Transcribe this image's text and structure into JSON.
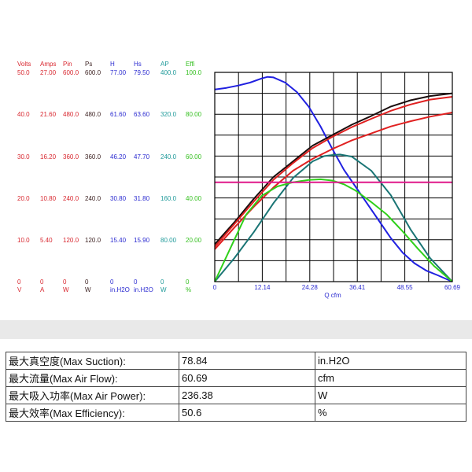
{
  "chart_data": {
    "type": "line",
    "x_axis": {
      "label": "Q  cfm",
      "ticks": [
        "0",
        "12.14",
        "24.28",
        "36.41",
        "48.55",
        "60.69"
      ],
      "range": [
        0,
        60.69
      ]
    },
    "y_axis_columns": [
      {
        "name": "Volts",
        "color": "#d8262e",
        "ticks": [
          "50.0",
          "40.0",
          "30.0",
          "20.0",
          "10.0",
          "0"
        ],
        "unit": "V"
      },
      {
        "name": "Amps",
        "color": "#d8262e",
        "ticks": [
          "27.00",
          "21.60",
          "16.20",
          "10.80",
          "5.40",
          "0"
        ],
        "unit": "A"
      },
      {
        "name": "Pin",
        "color": "#d8262e",
        "ticks": [
          "600.0",
          "480.0",
          "360.0",
          "240.0",
          "120.0",
          "0"
        ],
        "unit": "W"
      },
      {
        "name": "Ps",
        "color": "#3a1f1f",
        "ticks": [
          "600.0",
          "480.0",
          "360.0",
          "240.0",
          "120.0",
          "0"
        ],
        "unit": "W"
      },
      {
        "name": "H",
        "color": "#2a2ad0",
        "ticks": [
          "77.00",
          "61.60",
          "46.20",
          "30.80",
          "15.40",
          "0"
        ],
        "unit": "in.H2O"
      },
      {
        "name": "Hs",
        "color": "#2a2ad0",
        "ticks": [
          "79.50",
          "63.60",
          "47.70",
          "31.80",
          "15.90",
          "0"
        ],
        "unit": "in.H2O"
      },
      {
        "name": "AP",
        "color": "#1f9a9a",
        "ticks": [
          "400.0",
          "320.0",
          "240.0",
          "160.0",
          "80.00",
          "0"
        ],
        "unit": "W"
      },
      {
        "name": "Effi",
        "color": "#35c020",
        "ticks": [
          "100.0",
          "80.00",
          "60.00",
          "40.00",
          "20.00",
          "0"
        ],
        "unit": "%"
      }
    ],
    "grid": true,
    "series": [
      {
        "axis": "Hs",
        "color": "#2020e0",
        "points": [
          [
            0,
            73.0
          ],
          [
            3,
            73.6
          ],
          [
            6,
            74.5
          ],
          [
            9,
            75.6
          ],
          [
            12,
            77.2
          ],
          [
            13.5,
            77.8
          ],
          [
            15,
            77.6
          ],
          [
            18,
            75.6
          ],
          [
            21,
            72.0
          ],
          [
            24,
            66.5
          ],
          [
            27,
            59.0
          ],
          [
            30,
            50.5
          ],
          [
            33,
            42.5
          ],
          [
            36,
            36.0
          ],
          [
            39,
            29.5
          ],
          [
            42,
            23.0
          ],
          [
            45,
            16.5
          ],
          [
            48,
            11.0
          ],
          [
            51,
            7.0
          ],
          [
            54,
            4.2
          ],
          [
            57,
            2.4
          ],
          [
            60.69,
            0
          ]
        ]
      },
      {
        "axis": "Pin",
        "color": "#1a0d0d",
        "points": [
          [
            0,
            107
          ],
          [
            5,
            170
          ],
          [
            10,
            238
          ],
          [
            15,
            300
          ],
          [
            20,
            345
          ],
          [
            25,
            390
          ],
          [
            30,
            420
          ],
          [
            35,
            450
          ],
          [
            40,
            475
          ],
          [
            45,
            502
          ],
          [
            50,
            520
          ],
          [
            55,
            532
          ],
          [
            60.69,
            540
          ]
        ]
      },
      {
        "axis": "Pin",
        "color": "#e02020",
        "points": [
          [
            0,
            100
          ],
          [
            5,
            165
          ],
          [
            10,
            230
          ],
          [
            15,
            292
          ],
          [
            20,
            340
          ],
          [
            25,
            383
          ],
          [
            30,
            415
          ],
          [
            35,
            443
          ],
          [
            40,
            467
          ],
          [
            45,
            490
          ],
          [
            50,
            508
          ],
          [
            55,
            522
          ],
          [
            60.69,
            530
          ]
        ]
      },
      {
        "axis": "Pin",
        "color": "#e02020",
        "points": [
          [
            0,
            93
          ],
          [
            5,
            155
          ],
          [
            10,
            215
          ],
          [
            15,
            270
          ],
          [
            20,
            318
          ],
          [
            25,
            352
          ],
          [
            30,
            380
          ],
          [
            35,
            405
          ],
          [
            40,
            425
          ],
          [
            45,
            445
          ],
          [
            50,
            460
          ],
          [
            55,
            473
          ],
          [
            60.69,
            485
          ]
        ]
      },
      {
        "axis": "AP",
        "color": "#1a7575",
        "points": [
          [
            0,
            0
          ],
          [
            5,
            45
          ],
          [
            10,
            95
          ],
          [
            15,
            150
          ],
          [
            20,
            198
          ],
          [
            25,
            230
          ],
          [
            28,
            240
          ],
          [
            30,
            242
          ],
          [
            32,
            243
          ],
          [
            35,
            239
          ],
          [
            40,
            212
          ],
          [
            45,
            165
          ],
          [
            50,
            100
          ],
          [
            55,
            45
          ],
          [
            60.69,
            0
          ]
        ]
      },
      {
        "axis": "Effi",
        "color": "#2fd01a",
        "points": [
          [
            0,
            0
          ],
          [
            4,
            16
          ],
          [
            8,
            32
          ],
          [
            12,
            41
          ],
          [
            16,
            45.5
          ],
          [
            20,
            47.5
          ],
          [
            24,
            48.6
          ],
          [
            27,
            48.9
          ],
          [
            30,
            48.3
          ],
          [
            33,
            46.5
          ],
          [
            36,
            43.5
          ],
          [
            40,
            38
          ],
          [
            44,
            32
          ],
          [
            48,
            24
          ],
          [
            52,
            15.5
          ],
          [
            56,
            7.5
          ],
          [
            60.69,
            0
          ]
        ]
      },
      {
        "axis": "Effi",
        "color": "#e0188a",
        "points": [
          [
            0,
            47.5
          ],
          [
            60.69,
            47.5
          ]
        ]
      }
    ]
  },
  "spec_table": [
    {
      "label": "最大真空度(Max Suction):",
      "value": "78.84",
      "unit": "in.H2O"
    },
    {
      "label": "最大流量(Max Air Flow):",
      "value": "60.69",
      "unit": "cfm"
    },
    {
      "label": "最大吸入功率(Max Air Power):",
      "value": "236.38",
      "unit": "W"
    },
    {
      "label": "最大效率(Max Efficiency):",
      "value": "50.6",
      "unit": "%"
    }
  ]
}
